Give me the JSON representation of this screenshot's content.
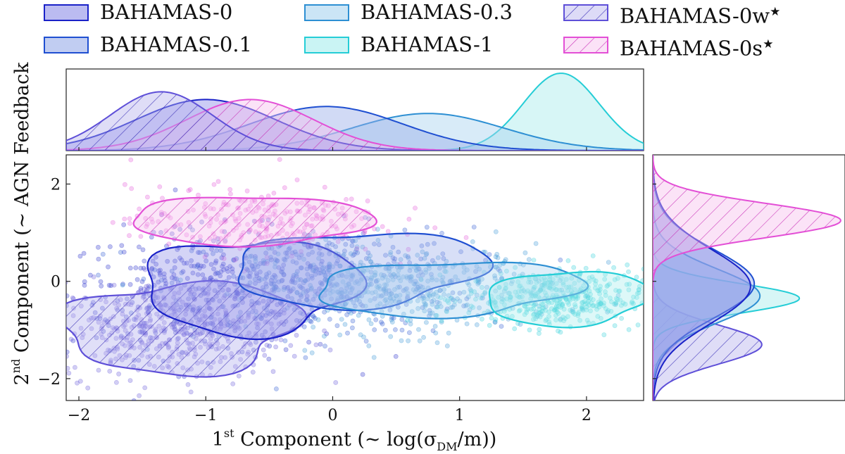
{
  "chart_data": {
    "type": "scatter",
    "title": "",
    "xlabel_parts": {
      "ord": "1",
      "sup": "st",
      "text": " Component (",
      "sym": "~",
      "expr": " log(σ",
      "sub": "DM",
      "tail": "/m))"
    },
    "ylabel_parts": {
      "ord": "2",
      "sup": "nd",
      "text": " Component (",
      "sym": "~",
      "expr": " AGN Feedback"
    },
    "xlim": [
      -2.1,
      2.45
    ],
    "ylim": [
      -2.45,
      2.6
    ],
    "x_ticks": [
      -2,
      -1,
      0,
      1,
      2
    ],
    "y_ticks": [
      -2,
      0,
      2
    ],
    "x_tick_labels": [
      "−2",
      "−1",
      "0",
      "1",
      "2"
    ],
    "y_tick_labels": [
      "−2",
      "0",
      "2"
    ],
    "legend_position": "top",
    "series": [
      {
        "key": "b0",
        "name": "BAHAMAS-0",
        "color": "#1a22c8",
        "fill": "#8d8ee8",
        "hatch": false,
        "marginal_x": {
          "mean": -1.0,
          "sd": 0.55,
          "amp": 0.66
        },
        "marginal_y": {
          "mean": -0.1,
          "sd": 0.75,
          "amp": 0.52
        },
        "scatter": {
          "mx": -1.0,
          "my": -0.25,
          "sx": 0.55,
          "sy": 0.65,
          "n": 420
        }
      },
      {
        "key": "b01",
        "name": "BAHAMAS-0.1",
        "color": "#1f4fd1",
        "fill": "#98ace9",
        "hatch": false,
        "marginal_x": {
          "mean": -0.05,
          "sd": 0.6,
          "amp": 0.57
        },
        "marginal_y": {
          "mean": -0.05,
          "sd": 0.7,
          "amp": 0.54
        },
        "scatter": {
          "mx": -0.1,
          "my": 0.0,
          "sx": 0.6,
          "sy": 0.55,
          "n": 420
        }
      },
      {
        "key": "b03",
        "name": "BAHAMAS-0.3",
        "color": "#2d8fd3",
        "fill": "#a8d3f0",
        "hatch": false,
        "marginal_x": {
          "mean": 0.75,
          "sd": 0.6,
          "amp": 0.48
        },
        "marginal_y": {
          "mean": -0.3,
          "sd": 0.55,
          "amp": 0.57
        },
        "scatter": {
          "mx": 0.6,
          "my": -0.15,
          "sx": 0.6,
          "sy": 0.45,
          "n": 420
        }
      },
      {
        "key": "b1",
        "name": "BAHAMAS-1",
        "color": "#25cdd6",
        "fill": "#a6ecec",
        "hatch": false,
        "marginal_x": {
          "mean": 1.8,
          "sd": 0.3,
          "amp": 1.0
        },
        "marginal_y": {
          "mean": -0.35,
          "sd": 0.3,
          "amp": 0.78
        },
        "scatter": {
          "mx": 1.75,
          "my": -0.35,
          "sx": 0.35,
          "sy": 0.3,
          "n": 420
        }
      },
      {
        "key": "b0w",
        "name": "BAHAMAS-0w",
        "star": true,
        "color": "#5e4fd8",
        "fill": "#b5b0ee",
        "hatch": true,
        "marginal_x": {
          "mean": -1.35,
          "sd": 0.4,
          "amp": 0.76
        },
        "marginal_y": {
          "mean": -1.3,
          "sd": 0.4,
          "amp": 0.58
        },
        "scatter": {
          "mx": -1.25,
          "my": -1.0,
          "sx": 0.45,
          "sy": 0.5,
          "n": 420
        }
      },
      {
        "key": "b0s",
        "name": "BAHAMAS-0s",
        "star": true,
        "color": "#e34fd6",
        "fill": "#f6c0ee",
        "hatch": true,
        "marginal_x": {
          "mean": -0.65,
          "sd": 0.5,
          "amp": 0.66
        },
        "marginal_y": {
          "mean": 1.25,
          "sd": 0.35,
          "amp": 1.0
        },
        "scatter": {
          "mx": -0.6,
          "my": 1.25,
          "sx": 0.5,
          "sy": 0.35,
          "n": 260
        }
      }
    ]
  }
}
